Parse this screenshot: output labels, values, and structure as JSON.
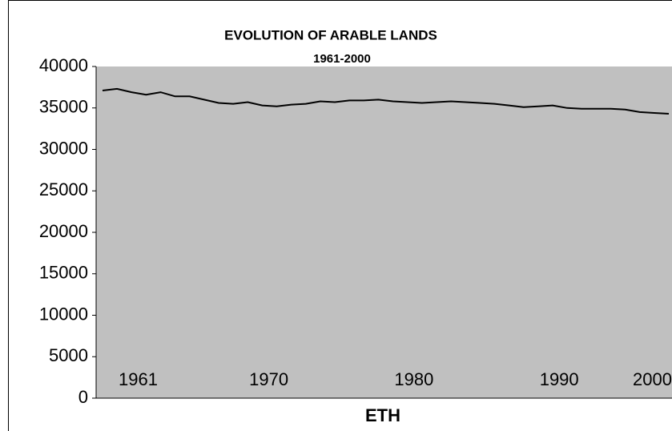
{
  "chart_data": {
    "type": "line",
    "title": "EVOLUTION OF ARABLE LANDS",
    "subtitle": "1961-2000",
    "x_label": "ETH",
    "categories": [
      "1961",
      null,
      null,
      null,
      null,
      null,
      null,
      null,
      null,
      "1970",
      null,
      null,
      null,
      null,
      null,
      null,
      null,
      null,
      null,
      "1980",
      null,
      null,
      null,
      null,
      null,
      null,
      null,
      null,
      null,
      "1990",
      null,
      null,
      null,
      null,
      null,
      null,
      null,
      null,
      null,
      "2000"
    ],
    "series": [
      {
        "name": "ETH",
        "color": "#000000",
        "values": [
          37100,
          37300,
          36900,
          36600,
          36900,
          36400,
          36400,
          36000,
          35600,
          35500,
          35700,
          35300,
          35200,
          35400,
          35500,
          35800,
          35700,
          35900,
          35900,
          36000,
          35800,
          35700,
          35600,
          35700,
          35800,
          35700,
          35600,
          35500,
          35300,
          35100,
          35200,
          35300,
          35000,
          34900,
          34900,
          34900,
          34800,
          34500,
          34400,
          34300
        ]
      }
    ],
    "ylim": [
      0,
      40000
    ],
    "yticks": [
      0,
      5000,
      10000,
      15000,
      20000,
      25000,
      30000,
      35000,
      40000
    ],
    "plot_background": "#c0c0c0"
  }
}
